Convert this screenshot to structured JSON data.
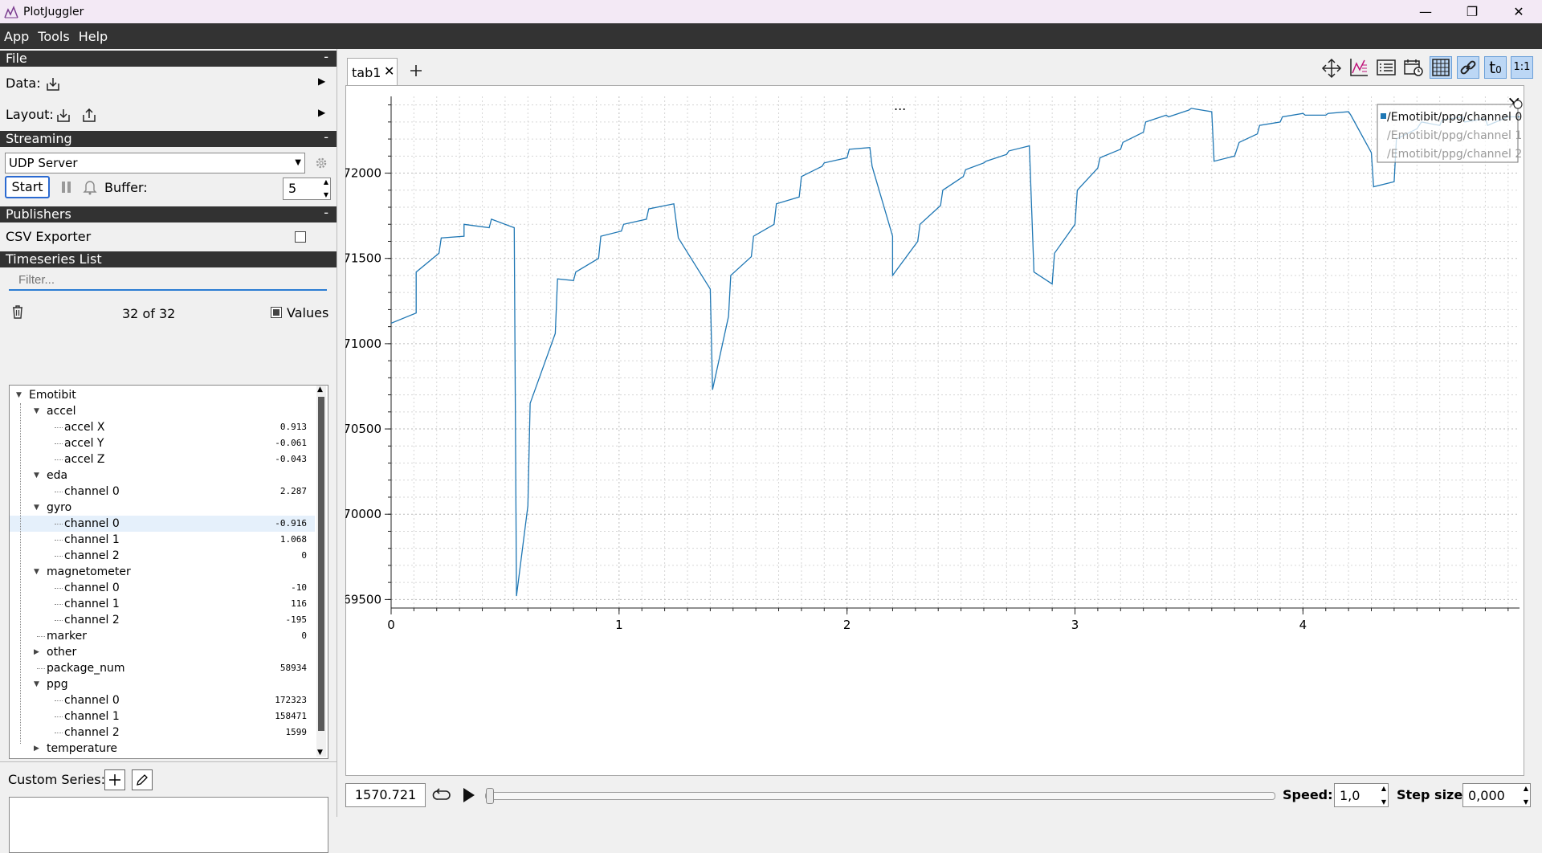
{
  "window": {
    "title": "PlotJuggler"
  },
  "menu": [
    "App",
    "Tools",
    "Help"
  ],
  "file_section": {
    "title": "File",
    "collapse": "-",
    "data_label": "Data:",
    "layout_label": "Layout:"
  },
  "streaming": {
    "title": "Streaming",
    "collapse": "-",
    "source": "UDP Server",
    "start_label": "Start",
    "buffer_label": "Buffer:",
    "buffer_value": "5"
  },
  "publishers": {
    "title": "Publishers",
    "collapse": "-",
    "csv_label": "CSV Exporter"
  },
  "timeseries": {
    "title": "Timeseries List",
    "filter_placeholder": "Filter...",
    "count": "32 of 32",
    "values_label": "Values"
  },
  "tree": [
    {
      "label": "Emotibit",
      "depth": 0,
      "expanded": true,
      "value": ""
    },
    {
      "label": "accel",
      "depth": 1,
      "expanded": true,
      "value": ""
    },
    {
      "label": "accel X",
      "depth": 2,
      "value": "0.913"
    },
    {
      "label": "accel Y",
      "depth": 2,
      "value": "-0.061"
    },
    {
      "label": "accel Z",
      "depth": 2,
      "value": "-0.043"
    },
    {
      "label": "eda",
      "depth": 1,
      "expanded": true,
      "value": ""
    },
    {
      "label": "channel 0",
      "depth": 2,
      "value": "2.287"
    },
    {
      "label": "gyro",
      "depth": 1,
      "expanded": true,
      "value": ""
    },
    {
      "label": "channel 0",
      "depth": 2,
      "value": "-0.916",
      "selected": true
    },
    {
      "label": "channel 1",
      "depth": 2,
      "value": "1.068"
    },
    {
      "label": "channel 2",
      "depth": 2,
      "value": "0"
    },
    {
      "label": "magnetometer",
      "depth": 1,
      "expanded": true,
      "value": ""
    },
    {
      "label": "channel 0",
      "depth": 2,
      "value": "-10"
    },
    {
      "label": "channel 1",
      "depth": 2,
      "value": "116"
    },
    {
      "label": "channel 2",
      "depth": 2,
      "value": "-195"
    },
    {
      "label": "marker",
      "depth": 1,
      "value": "0"
    },
    {
      "label": "other",
      "depth": 1,
      "expanded": false,
      "value": ""
    },
    {
      "label": "package_num",
      "depth": 1,
      "value": "58934"
    },
    {
      "label": "ppg",
      "depth": 1,
      "expanded": true,
      "value": ""
    },
    {
      "label": "channel 0",
      "depth": 2,
      "value": "172323"
    },
    {
      "label": "channel 1",
      "depth": 2,
      "value": "158471"
    },
    {
      "label": "channel 2",
      "depth": 2,
      "value": "1599"
    },
    {
      "label": "temperature",
      "depth": 1,
      "expanded": false,
      "value": ""
    }
  ],
  "custom_series": {
    "label": "Custom Series:"
  },
  "tabs": [
    {
      "label": "tab1"
    }
  ],
  "toolbar_icons": [
    "move-icon",
    "zoom-axis-icon",
    "legend-icon",
    "time-icon",
    "grid-icon",
    "link-icon",
    "t0-icon",
    "ratio-icon"
  ],
  "toolbar_t0": "t",
  "toolbar_t0_sub": "0",
  "toolbar_ratio": "1:1",
  "plot": {
    "menu_dots": "...",
    "close_glyph": "×"
  },
  "chart_data": {
    "type": "line",
    "xlim": [
      0,
      4.95
    ],
    "ylim": [
      169450,
      172450
    ],
    "xticks": [
      0,
      1,
      2,
      3,
      4
    ],
    "yticks": [
      169500,
      170000,
      170500,
      171000,
      171500,
      172000
    ],
    "xtick_labels": [
      "0",
      "1",
      "2",
      "3",
      "4"
    ],
    "ytick_labels": [
      "169500",
      "170000",
      "170500",
      "171000",
      "171500",
      "172000"
    ],
    "legend": [
      "/Emotibit/ppg/channel 0",
      "/Emotibit/ppg/channel 1",
      "/Emotibit/ppg/channel 2"
    ],
    "series": [
      {
        "name": "/Emotibit/ppg/channel 0",
        "color": "#1f77b4",
        "x": [
          0,
          0.11,
          0.11,
          0.21,
          0.22,
          0.32,
          0.32,
          0.43,
          0.44,
          0.54,
          0.55,
          0.6,
          0.61,
          0.72,
          0.73,
          0.8,
          0.81,
          0.91,
          0.92,
          1.01,
          1.02,
          1.12,
          1.13,
          1.24,
          1.26,
          1.4,
          1.41,
          1.48,
          1.49,
          1.58,
          1.59,
          1.68,
          1.69,
          1.79,
          1.8,
          1.89,
          1.9,
          2.0,
          2.01,
          2.1,
          2.11,
          2.2,
          2.2,
          2.31,
          2.32,
          2.41,
          2.42,
          2.51,
          2.52,
          2.6,
          2.61,
          2.7,
          2.71,
          2.8,
          2.82,
          2.9,
          2.91,
          3.0,
          3.01,
          3.1,
          3.11,
          3.2,
          3.21,
          3.3,
          3.31,
          3.4,
          3.41,
          3.5,
          3.51,
          3.6,
          3.61,
          3.7,
          3.72,
          3.8,
          3.81,
          3.9,
          3.91,
          4.0,
          4.01,
          4.1,
          4.11,
          4.2,
          4.21,
          4.3,
          4.31,
          4.4,
          4.41,
          4.5,
          4.52,
          4.6,
          4.61,
          4.7,
          4.71,
          4.8,
          4.81,
          4.9,
          4.95
        ],
        "y": [
          171120,
          171180,
          171420,
          171530,
          171620,
          171630,
          171700,
          171680,
          171730,
          171680,
          169520,
          170050,
          170650,
          171060,
          171380,
          171370,
          171420,
          171500,
          171630,
          171660,
          171700,
          171730,
          171790,
          171820,
          171620,
          171320,
          170730,
          171160,
          171400,
          171510,
          171630,
          171700,
          171820,
          171860,
          171980,
          172040,
          172060,
          172090,
          172140,
          172150,
          172040,
          171630,
          171400,
          171600,
          171700,
          171810,
          171900,
          171980,
          172020,
          172060,
          172070,
          172110,
          172130,
          172160,
          171420,
          171350,
          171530,
          171700,
          171900,
          172030,
          172090,
          172140,
          172180,
          172240,
          172300,
          172340,
          172330,
          172370,
          172380,
          172360,
          172070,
          172100,
          172180,
          172230,
          172280,
          172300,
          172330,
          172350,
          172340,
          172340,
          172350,
          172360,
          172340,
          172120,
          171920,
          171950,
          172200,
          172260,
          172300,
          172280,
          172310,
          172330,
          172300,
          172320,
          172280,
          172330,
          172330
        ]
      }
    ]
  },
  "playback": {
    "time": "1570.721",
    "speed_label": "Speed:",
    "speed_value": "1,0",
    "step_label": "Step size:",
    "step_value": "0,000"
  }
}
